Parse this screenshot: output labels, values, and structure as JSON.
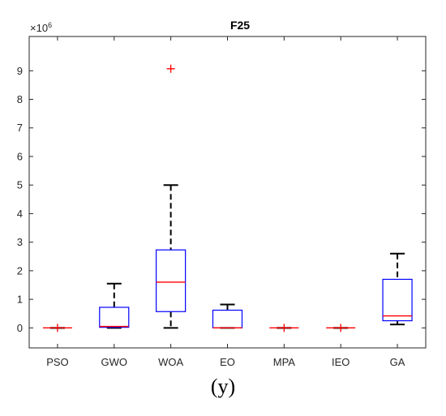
{
  "chart_data": {
    "type": "box",
    "title": "F25",
    "y_multiplier_label": "×10",
    "y_multiplier_exponent": "6",
    "ylim": [
      -0.7,
      10.2
    ],
    "yticks": [
      0,
      1,
      2,
      3,
      4,
      5,
      6,
      7,
      8,
      9
    ],
    "grid": false,
    "categories": [
      "PSO",
      "GWO",
      "WOA",
      "EO",
      "MPA",
      "IEO",
      "GA"
    ],
    "boxes": [
      {
        "name": "PSO",
        "q1": 0.0,
        "median": 0.0,
        "q3": 0.0,
        "whisker_low": 0.0,
        "whisker_high": 0.0,
        "outliers": [
          0.0
        ]
      },
      {
        "name": "GWO",
        "q1": 0.02,
        "median": 0.05,
        "q3": 0.72,
        "whisker_low": 0.0,
        "whisker_high": 1.55,
        "outliers": []
      },
      {
        "name": "WOA",
        "q1": 0.57,
        "median": 1.6,
        "q3": 2.73,
        "whisker_low": 0.0,
        "whisker_high": 5.0,
        "outliers": [
          9.07
        ]
      },
      {
        "name": "EO",
        "q1": 0.0,
        "median": 0.0,
        "q3": 0.62,
        "whisker_low": 0.0,
        "whisker_high": 0.82,
        "outliers": []
      },
      {
        "name": "MPA",
        "q1": 0.0,
        "median": 0.0,
        "q3": 0.0,
        "whisker_low": 0.0,
        "whisker_high": 0.0,
        "outliers": [
          0.0
        ]
      },
      {
        "name": "IEO",
        "q1": 0.0,
        "median": 0.0,
        "q3": 0.0,
        "whisker_low": 0.0,
        "whisker_high": 0.0,
        "outliers": [
          0.0
        ]
      },
      {
        "name": "GA",
        "q1": 0.25,
        "median": 0.42,
        "q3": 1.7,
        "whisker_low": 0.12,
        "whisker_high": 2.6,
        "outliers": []
      }
    ],
    "colors": {
      "box": "#0000ff",
      "median": "#ff0000",
      "whisker": "#000000",
      "outlier": "#ff0000",
      "axis": "#262626"
    }
  },
  "caption": "(y)"
}
